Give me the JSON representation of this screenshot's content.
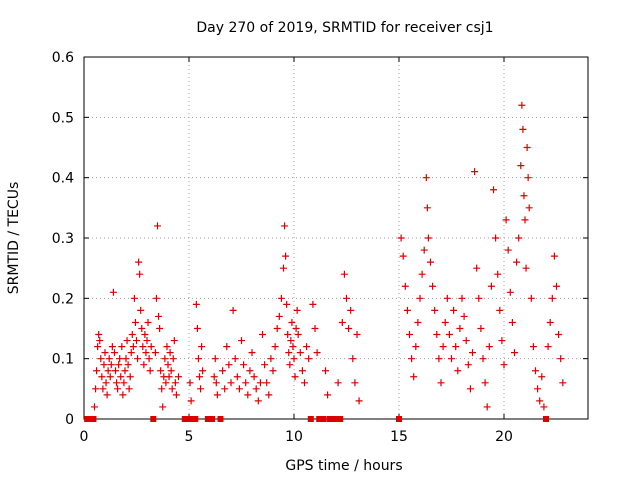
{
  "chart_data": {
    "type": "scatter",
    "title": "Day 270 of 2019, SRMTID for receiver csj1",
    "xlabel": "GPS time / hours",
    "ylabel": "SRMTID / TECUs",
    "xlim": [
      0,
      24
    ],
    "ylim": [
      0,
      0.6
    ],
    "xticks": [
      0,
      5,
      10,
      15,
      20
    ],
    "yticks": [
      0,
      0.1,
      0.2,
      0.3,
      0.4,
      0.5,
      0.6
    ],
    "xtick_labels": [
      "0",
      "5",
      "10",
      "15",
      "20"
    ],
    "ytick_labels": [
      "0",
      "0.1",
      "0.2",
      "0.3",
      "0.4",
      "0.5",
      "0.6"
    ],
    "grid": true,
    "marker": "+",
    "color": "#dd0000",
    "zero_markers_color": "#dd0000",
    "series": [
      {
        "name": "SRMTID",
        "points": [
          [
            0.15,
            0.0
          ],
          [
            0.25,
            0.0
          ],
          [
            0.35,
            0.0
          ],
          [
            0.45,
            0.0
          ],
          [
            0.5,
            0.02
          ],
          [
            0.55,
            0.05
          ],
          [
            0.6,
            0.08
          ],
          [
            0.65,
            0.12
          ],
          [
            0.7,
            0.14
          ],
          [
            0.75,
            0.13
          ],
          [
            0.8,
            0.1
          ],
          [
            0.85,
            0.07
          ],
          [
            0.9,
            0.05
          ],
          [
            0.95,
            0.09
          ],
          [
            1.0,
            0.11
          ],
          [
            1.05,
            0.06
          ],
          [
            1.1,
            0.04
          ],
          [
            1.15,
            0.08
          ],
          [
            1.2,
            0.1
          ],
          [
            1.25,
            0.07
          ],
          [
            1.3,
            0.09
          ],
          [
            1.35,
            0.12
          ],
          [
            1.4,
            0.21
          ],
          [
            1.45,
            0.11
          ],
          [
            1.5,
            0.08
          ],
          [
            1.55,
            0.06
          ],
          [
            1.6,
            0.05
          ],
          [
            1.65,
            0.09
          ],
          [
            1.7,
            0.1
          ],
          [
            1.75,
            0.07
          ],
          [
            1.8,
            0.12
          ],
          [
            1.85,
            0.04
          ],
          [
            1.9,
            0.06
          ],
          [
            1.95,
            0.08
          ],
          [
            2.0,
            0.1
          ],
          [
            2.05,
            0.13
          ],
          [
            2.1,
            0.09
          ],
          [
            2.15,
            0.05
          ],
          [
            2.2,
            0.07
          ],
          [
            2.25,
            0.11
          ],
          [
            2.3,
            0.14
          ],
          [
            2.35,
            0.12
          ],
          [
            2.4,
            0.2
          ],
          [
            2.45,
            0.16
          ],
          [
            2.5,
            0.13
          ],
          [
            2.55,
            0.1
          ],
          [
            2.6,
            0.26
          ],
          [
            2.65,
            0.24
          ],
          [
            2.7,
            0.18
          ],
          [
            2.75,
            0.15
          ],
          [
            2.8,
            0.12
          ],
          [
            2.85,
            0.09
          ],
          [
            2.9,
            0.14
          ],
          [
            2.95,
            0.11
          ],
          [
            3.0,
            0.13
          ],
          [
            3.05,
            0.16
          ],
          [
            3.1,
            0.1
          ],
          [
            3.15,
            0.08
          ],
          [
            3.2,
            0.12
          ],
          [
            3.3,
            0.0
          ],
          [
            3.4,
            0.11
          ],
          [
            3.45,
            0.2
          ],
          [
            3.5,
            0.32
          ],
          [
            3.55,
            0.17
          ],
          [
            3.6,
            0.15
          ],
          [
            3.65,
            0.08
          ],
          [
            3.7,
            0.05
          ],
          [
            3.75,
            0.02
          ],
          [
            3.8,
            0.07
          ],
          [
            3.85,
            0.1
          ],
          [
            3.9,
            0.06
          ],
          [
            3.95,
            0.12
          ],
          [
            4.0,
            0.09
          ],
          [
            4.05,
            0.07
          ],
          [
            4.1,
            0.11
          ],
          [
            4.15,
            0.08
          ],
          [
            4.2,
            0.05
          ],
          [
            4.25,
            0.1
          ],
          [
            4.3,
            0.13
          ],
          [
            4.35,
            0.06
          ],
          [
            4.4,
            0.04
          ],
          [
            4.5,
            0.07
          ],
          [
            4.8,
            0.0
          ],
          [
            4.9,
            0.0
          ],
          [
            5.0,
            0.0
          ],
          [
            5.05,
            0.06
          ],
          [
            5.1,
            0.03
          ],
          [
            5.2,
            0.0
          ],
          [
            5.3,
            0.0
          ],
          [
            5.35,
            0.19
          ],
          [
            5.4,
            0.15
          ],
          [
            5.45,
            0.1
          ],
          [
            5.5,
            0.07
          ],
          [
            5.55,
            0.05
          ],
          [
            5.6,
            0.12
          ],
          [
            5.65,
            0.08
          ],
          [
            5.9,
            0.0
          ],
          [
            6.0,
            0.0
          ],
          [
            6.1,
            0.0
          ],
          [
            6.2,
            0.07
          ],
          [
            6.25,
            0.1
          ],
          [
            6.3,
            0.06
          ],
          [
            6.35,
            0.04
          ],
          [
            6.5,
            0.0
          ],
          [
            6.6,
            0.08
          ],
          [
            6.7,
            0.05
          ],
          [
            6.8,
            0.12
          ],
          [
            6.9,
            0.09
          ],
          [
            7.0,
            0.06
          ],
          [
            7.1,
            0.18
          ],
          [
            7.2,
            0.1
          ],
          [
            7.3,
            0.07
          ],
          [
            7.4,
            0.05
          ],
          [
            7.5,
            0.13
          ],
          [
            7.6,
            0.09
          ],
          [
            7.7,
            0.06
          ],
          [
            7.8,
            0.04
          ],
          [
            7.9,
            0.08
          ],
          [
            8.0,
            0.11
          ],
          [
            8.1,
            0.07
          ],
          [
            8.2,
            0.05
          ],
          [
            8.3,
            0.03
          ],
          [
            8.4,
            0.06
          ],
          [
            8.5,
            0.14
          ],
          [
            8.6,
            0.09
          ],
          [
            8.7,
            0.06
          ],
          [
            8.8,
            0.04
          ],
          [
            8.9,
            0.1
          ],
          [
            9.0,
            0.08
          ],
          [
            9.1,
            0.12
          ],
          [
            9.2,
            0.15
          ],
          [
            9.3,
            0.17
          ],
          [
            9.4,
            0.2
          ],
          [
            9.5,
            0.25
          ],
          [
            9.55,
            0.32
          ],
          [
            9.6,
            0.27
          ],
          [
            9.65,
            0.19
          ],
          [
            9.7,
            0.14
          ],
          [
            9.75,
            0.11
          ],
          [
            9.8,
            0.09
          ],
          [
            9.85,
            0.13
          ],
          [
            9.9,
            0.16
          ],
          [
            9.95,
            0.12
          ],
          [
            10.0,
            0.1
          ],
          [
            10.05,
            0.07
          ],
          [
            10.1,
            0.15
          ],
          [
            10.15,
            0.18
          ],
          [
            10.2,
            0.14
          ],
          [
            10.3,
            0.11
          ],
          [
            10.4,
            0.08
          ],
          [
            10.5,
            0.06
          ],
          [
            10.6,
            0.12
          ],
          [
            10.7,
            0.1
          ],
          [
            10.8,
            0.0
          ],
          [
            10.9,
            0.19
          ],
          [
            11.0,
            0.15
          ],
          [
            11.1,
            0.11
          ],
          [
            11.2,
            0.0
          ],
          [
            11.3,
            0.0
          ],
          [
            11.4,
            0.0
          ],
          [
            11.5,
            0.08
          ],
          [
            11.6,
            0.04
          ],
          [
            11.7,
            0.0
          ],
          [
            11.8,
            0.0
          ],
          [
            11.9,
            0.0
          ],
          [
            12.0,
            0.0
          ],
          [
            12.1,
            0.06
          ],
          [
            12.2,
            0.0
          ],
          [
            12.3,
            0.16
          ],
          [
            12.4,
            0.24
          ],
          [
            12.5,
            0.2
          ],
          [
            12.6,
            0.15
          ],
          [
            12.7,
            0.18
          ],
          [
            12.8,
            0.1
          ],
          [
            12.9,
            0.06
          ],
          [
            13.0,
            0.14
          ],
          [
            13.1,
            0.03
          ],
          [
            15.0,
            0.0
          ],
          [
            15.1,
            0.3
          ],
          [
            15.2,
            0.27
          ],
          [
            15.3,
            0.22
          ],
          [
            15.4,
            0.18
          ],
          [
            15.5,
            0.14
          ],
          [
            15.6,
            0.1
          ],
          [
            15.7,
            0.07
          ],
          [
            15.8,
            0.12
          ],
          [
            15.9,
            0.16
          ],
          [
            16.0,
            0.2
          ],
          [
            16.1,
            0.24
          ],
          [
            16.2,
            0.28
          ],
          [
            16.3,
            0.4
          ],
          [
            16.35,
            0.35
          ],
          [
            16.4,
            0.3
          ],
          [
            16.5,
            0.26
          ],
          [
            16.6,
            0.22
          ],
          [
            16.7,
            0.18
          ],
          [
            16.8,
            0.14
          ],
          [
            16.9,
            0.1
          ],
          [
            17.0,
            0.06
          ],
          [
            17.1,
            0.12
          ],
          [
            17.2,
            0.16
          ],
          [
            17.3,
            0.2
          ],
          [
            17.4,
            0.14
          ],
          [
            17.5,
            0.1
          ],
          [
            17.6,
            0.18
          ],
          [
            17.7,
            0.12
          ],
          [
            17.8,
            0.08
          ],
          [
            17.9,
            0.15
          ],
          [
            18.0,
            0.2
          ],
          [
            18.1,
            0.17
          ],
          [
            18.2,
            0.13
          ],
          [
            18.3,
            0.09
          ],
          [
            18.4,
            0.05
          ],
          [
            18.5,
            0.11
          ],
          [
            18.6,
            0.41
          ],
          [
            18.7,
            0.25
          ],
          [
            18.8,
            0.2
          ],
          [
            18.9,
            0.15
          ],
          [
            19.0,
            0.1
          ],
          [
            19.1,
            0.06
          ],
          [
            19.2,
            0.02
          ],
          [
            19.3,
            0.12
          ],
          [
            19.4,
            0.22
          ],
          [
            19.5,
            0.38
          ],
          [
            19.6,
            0.3
          ],
          [
            19.7,
            0.24
          ],
          [
            19.8,
            0.18
          ],
          [
            19.9,
            0.13
          ],
          [
            20.0,
            0.09
          ],
          [
            20.1,
            0.33
          ],
          [
            20.2,
            0.28
          ],
          [
            20.3,
            0.21
          ],
          [
            20.4,
            0.16
          ],
          [
            20.5,
            0.11
          ],
          [
            20.6,
            0.26
          ],
          [
            20.7,
            0.3
          ],
          [
            20.8,
            0.42
          ],
          [
            20.85,
            0.52
          ],
          [
            20.9,
            0.48
          ],
          [
            20.95,
            0.37
          ],
          [
            21.0,
            0.33
          ],
          [
            21.05,
            0.25
          ],
          [
            21.1,
            0.45
          ],
          [
            21.15,
            0.4
          ],
          [
            21.2,
            0.35
          ],
          [
            21.3,
            0.2
          ],
          [
            21.4,
            0.12
          ],
          [
            21.5,
            0.08
          ],
          [
            21.6,
            0.05
          ],
          [
            21.7,
            0.03
          ],
          [
            21.8,
            0.07
          ],
          [
            21.9,
            0.02
          ],
          [
            22.0,
            0.0
          ],
          [
            22.1,
            0.12
          ],
          [
            22.2,
            0.16
          ],
          [
            22.3,
            0.2
          ],
          [
            22.4,
            0.27
          ],
          [
            22.5,
            0.22
          ],
          [
            22.6,
            0.14
          ],
          [
            22.7,
            0.1
          ],
          [
            22.8,
            0.06
          ]
        ]
      }
    ]
  }
}
